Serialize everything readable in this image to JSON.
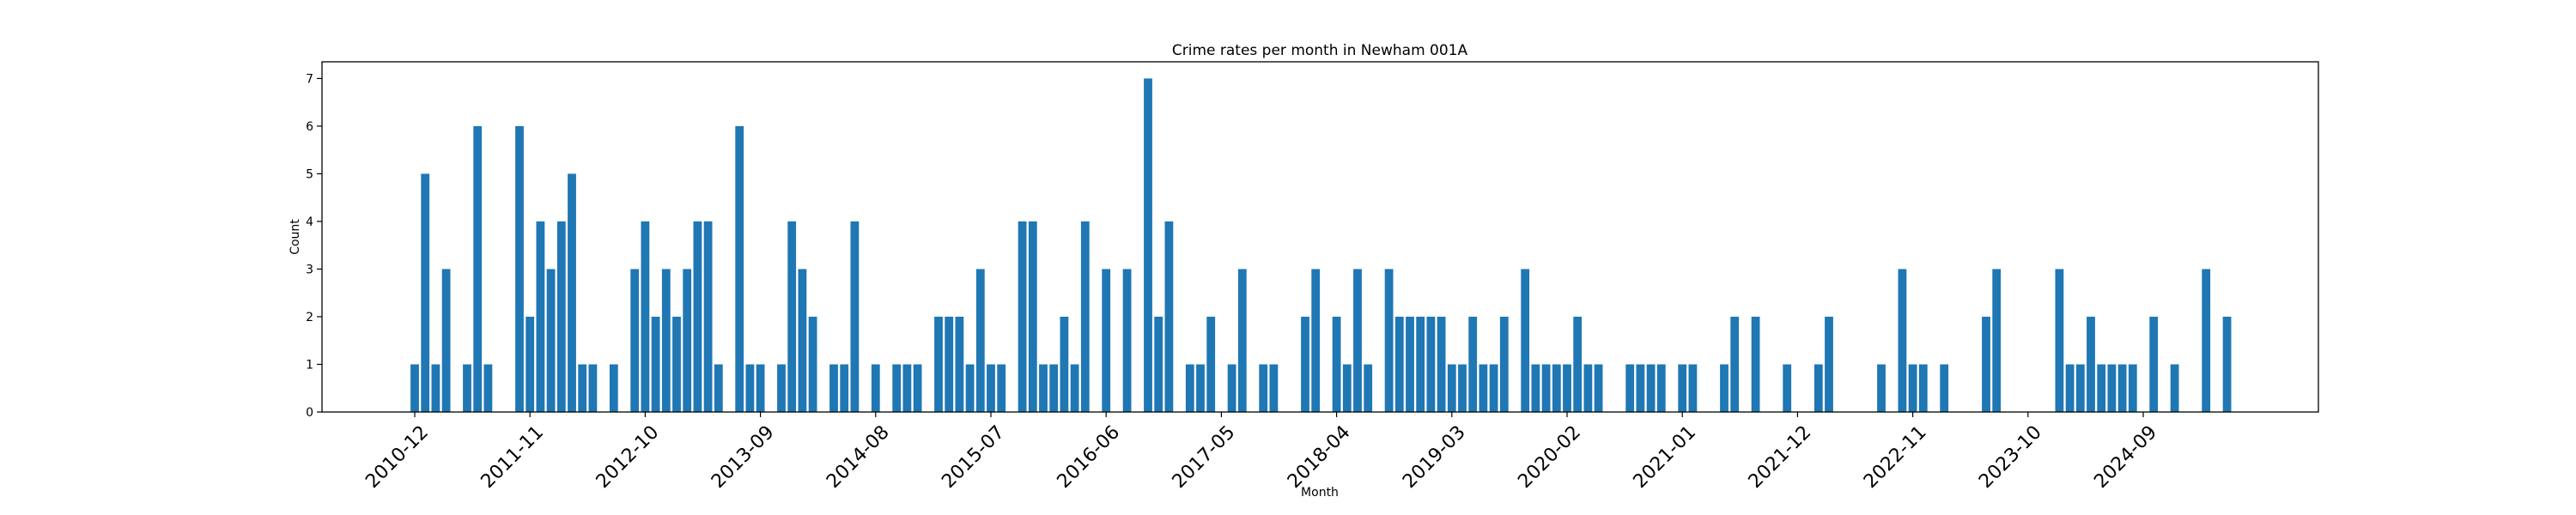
{
  "chart_data": {
    "type": "bar",
    "title": "Crime rates per month in Newham 001A",
    "xlabel": "Month",
    "ylabel": "Count",
    "color": "#1f77b4",
    "ylim": [
      0,
      7.35
    ],
    "yticks": [
      0,
      1,
      2,
      3,
      4,
      5,
      6,
      7
    ],
    "xticks": [
      "2010-12",
      "2011-11",
      "2012-10",
      "2013-09",
      "2014-08",
      "2015-07",
      "2016-06",
      "2017-05",
      "2018-04",
      "2019-03",
      "2020-02",
      "2021-01",
      "2021-12",
      "2022-11",
      "2023-10",
      "2024-09"
    ],
    "categories": [
      "2010-12",
      "2011-01",
      "2011-02",
      "2011-03",
      "2011-04",
      "2011-05",
      "2011-06",
      "2011-07",
      "2011-08",
      "2011-09",
      "2011-10",
      "2011-11",
      "2011-12",
      "2012-01",
      "2012-02",
      "2012-03",
      "2012-04",
      "2012-05",
      "2012-06",
      "2012-07",
      "2012-08",
      "2012-09",
      "2012-10",
      "2012-11",
      "2012-12",
      "2013-01",
      "2013-02",
      "2013-03",
      "2013-04",
      "2013-05",
      "2013-06",
      "2013-07",
      "2013-08",
      "2013-09",
      "2013-10",
      "2013-11",
      "2013-12",
      "2014-01",
      "2014-02",
      "2014-03",
      "2014-04",
      "2014-05",
      "2014-06",
      "2014-07",
      "2014-08",
      "2014-09",
      "2014-10",
      "2014-11",
      "2014-12",
      "2015-01",
      "2015-02",
      "2015-03",
      "2015-04",
      "2015-05",
      "2015-06",
      "2015-07",
      "2015-08",
      "2015-09",
      "2015-10",
      "2015-11",
      "2015-12",
      "2016-01",
      "2016-02",
      "2016-03",
      "2016-04",
      "2016-05",
      "2016-06",
      "2016-07",
      "2016-08",
      "2016-09",
      "2016-10",
      "2016-11",
      "2016-12",
      "2017-01",
      "2017-02",
      "2017-03",
      "2017-04",
      "2017-05",
      "2017-06",
      "2017-07",
      "2017-08",
      "2017-09",
      "2017-10",
      "2017-11",
      "2017-12",
      "2018-01",
      "2018-02",
      "2018-03",
      "2018-04",
      "2018-05",
      "2018-06",
      "2018-07",
      "2018-08",
      "2018-09",
      "2018-10",
      "2018-11",
      "2018-12",
      "2019-01",
      "2019-02",
      "2019-03",
      "2019-04",
      "2019-05",
      "2019-06",
      "2019-07",
      "2019-08",
      "2019-09",
      "2019-10",
      "2019-11",
      "2019-12",
      "2020-01",
      "2020-02",
      "2020-03",
      "2020-04",
      "2020-05",
      "2020-06",
      "2020-07",
      "2020-08",
      "2020-09",
      "2020-10",
      "2020-11",
      "2020-12",
      "2021-01",
      "2021-02",
      "2021-03",
      "2021-04",
      "2021-05",
      "2021-06",
      "2021-07",
      "2021-08",
      "2021-09",
      "2021-10",
      "2021-11",
      "2021-12",
      "2022-01",
      "2022-02",
      "2022-03",
      "2022-04",
      "2022-05",
      "2022-06",
      "2022-07",
      "2022-08",
      "2022-09",
      "2022-10",
      "2022-11",
      "2022-12",
      "2023-01",
      "2023-02",
      "2023-03",
      "2023-04",
      "2023-05",
      "2023-06",
      "2023-07",
      "2023-08",
      "2023-09",
      "2023-10",
      "2023-11",
      "2023-12",
      "2024-01",
      "2024-02",
      "2024-03",
      "2024-04",
      "2024-05",
      "2024-06",
      "2024-07",
      "2024-08",
      "2024-09",
      "2024-10",
      "2024-11",
      "2024-12",
      "2025-01",
      "2025-02",
      "2025-03",
      "2025-04",
      "2025-05",
      "2025-06",
      "2025-07"
    ],
    "values": [
      1,
      5,
      1,
      3,
      0,
      1,
      6,
      1,
      0,
      0,
      6,
      2,
      4,
      3,
      4,
      5,
      1,
      1,
      0,
      1,
      0,
      3,
      4,
      2,
      3,
      2,
      3,
      4,
      4,
      1,
      0,
      6,
      1,
      1,
      0,
      1,
      4,
      3,
      2,
      0,
      1,
      1,
      4,
      0,
      1,
      0,
      1,
      1,
      1,
      0,
      2,
      2,
      2,
      1,
      3,
      1,
      1,
      0,
      4,
      4,
      1,
      1,
      2,
      1,
      4,
      0,
      3,
      0,
      3,
      0,
      7,
      2,
      4,
      0,
      1,
      1,
      2,
      0,
      1,
      3,
      0,
      1,
      1,
      0,
      0,
      2,
      3,
      0,
      2,
      1,
      3,
      1,
      0,
      3,
      2,
      2,
      2,
      2,
      2,
      1,
      1,
      2,
      1,
      1,
      2,
      0,
      3,
      1,
      1,
      1,
      1,
      2,
      1,
      1,
      0,
      0,
      1,
      1,
      1,
      1,
      0,
      1,
      1,
      0,
      0,
      1,
      2,
      0,
      2,
      0,
      0,
      1,
      0,
      0,
      1,
      2,
      0,
      0,
      0,
      0,
      1,
      0,
      3,
      1,
      1,
      0,
      1,
      0,
      0,
      0,
      2,
      3,
      0,
      0,
      0,
      0,
      0,
      3,
      1,
      1,
      2,
      1,
      1,
      1,
      1,
      0,
      2,
      0,
      1,
      0,
      0,
      3,
      0,
      2,
      0,
      0
    ]
  }
}
